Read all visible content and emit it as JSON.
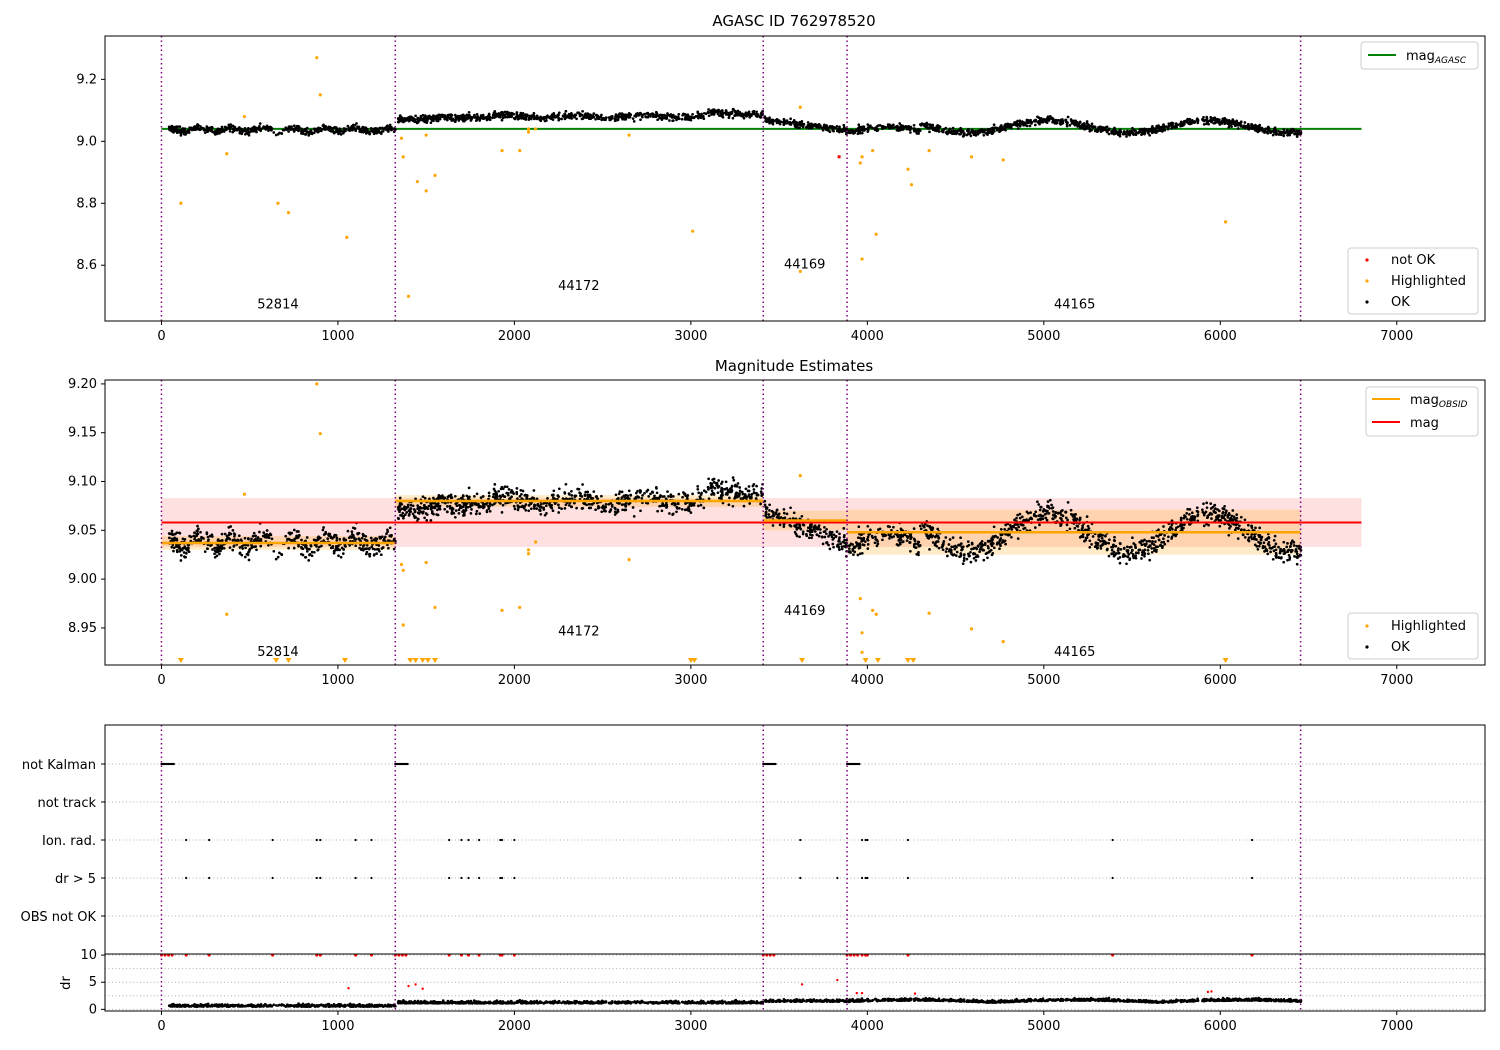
{
  "colors": {
    "ok": "#000000",
    "highlighted": "#ffa500",
    "not_ok": "#ff0000",
    "agasc_line": "#008000",
    "mag_line": "#ff0000",
    "obsid_line": "#ffa500",
    "obsid_boundary": "#800080"
  },
  "chart_data": [
    {
      "id": "agasc",
      "type": "scatter",
      "title": "AGASC ID 762978520",
      "xlim": [
        -320,
        7500
      ],
      "ylim": [
        8.42,
        9.34
      ],
      "xticks": [
        0,
        1000,
        2000,
        3000,
        4000,
        5000,
        6000,
        7000
      ],
      "yticks": [
        8.6,
        8.8,
        9.0,
        9.2
      ],
      "mag_agasc": 9.04,
      "legend_line": {
        "label": "mag",
        "subscript": "AGASC",
        "position": "upper right"
      },
      "legend_points": [
        "not OK",
        "Highlighted",
        "OK"
      ],
      "obsid_boundaries": [
        0,
        1325,
        3410,
        3885,
        6455
      ],
      "obsid_labels": [
        {
          "label": "52814",
          "x": 660,
          "y": 8.46
        },
        {
          "label": "44172",
          "x": 2365,
          "y": 8.52
        },
        {
          "label": "44169",
          "x": 3645,
          "y": 8.59
        },
        {
          "label": "44165",
          "x": 5175,
          "y": 8.46
        }
      ],
      "highlighted": [
        [
          110,
          8.8
        ],
        [
          370,
          8.96
        ],
        [
          470,
          9.08
        ],
        [
          660,
          8.8
        ],
        [
          720,
          8.77
        ],
        [
          880,
          9.27
        ],
        [
          900,
          9.15
        ],
        [
          1050,
          8.69
        ],
        [
          1360,
          9.01
        ],
        [
          1370,
          8.95
        ],
        [
          1400,
          8.5
        ],
        [
          1450,
          8.87
        ],
        [
          1500,
          9.02
        ],
        [
          1500,
          8.84
        ],
        [
          1550,
          8.89
        ],
        [
          1930,
          8.97
        ],
        [
          2030,
          8.97
        ],
        [
          2080,
          9.03
        ],
        [
          2080,
          9.04
        ],
        [
          2120,
          9.04
        ],
        [
          2650,
          9.02
        ],
        [
          3010,
          8.71
        ],
        [
          3620,
          9.11
        ],
        [
          3620,
          8.58
        ],
        [
          3960,
          8.93
        ],
        [
          3970,
          8.62
        ],
        [
          3970,
          8.95
        ],
        [
          4030,
          8.97
        ],
        [
          4050,
          8.7
        ],
        [
          4230,
          8.91
        ],
        [
          4250,
          8.86
        ],
        [
          4350,
          8.97
        ],
        [
          4590,
          8.95
        ],
        [
          4770,
          8.94
        ],
        [
          6030,
          8.74
        ]
      ],
      "not_ok": [
        [
          3840,
          8.95
        ]
      ]
    },
    {
      "id": "estimates",
      "type": "scatter",
      "title": "Magnitude Estimates",
      "xlim": [
        -320,
        7500
      ],
      "ylim": [
        8.912,
        9.204
      ],
      "xticks": [
        0,
        1000,
        2000,
        3000,
        4000,
        5000,
        6000,
        7000
      ],
      "yticks": [
        8.95,
        9.0,
        9.05,
        9.1,
        9.15,
        9.2
      ],
      "mag": 9.058,
      "mag_band": [
        9.033,
        9.083
      ],
      "obsid_means": [
        {
          "x0": 0,
          "x1": 1325,
          "mag": 9.037,
          "band": [
            9.03,
            9.044
          ]
        },
        {
          "x0": 1325,
          "x1": 3410,
          "mag": 9.08,
          "band": [
            9.074,
            9.086
          ]
        },
        {
          "x0": 3410,
          "x1": 3885,
          "mag": 9.06,
          "band": [
            9.05,
            9.07
          ]
        },
        {
          "x0": 3885,
          "x1": 6455,
          "mag": 9.048,
          "band": [
            9.025,
            9.071
          ]
        }
      ],
      "legend_lines": [
        {
          "label": "mag",
          "subscript": "OBSID"
        },
        {
          "label": "mag",
          "subscript": ""
        }
      ],
      "legend_points": [
        "Highlighted",
        "OK"
      ],
      "obsid_labels": [
        {
          "label": "52814",
          "x": 660,
          "y": 8.921
        },
        {
          "label": "44172",
          "x": 2365,
          "y": 8.942
        },
        {
          "label": "44169",
          "x": 3645,
          "y": 8.963
        },
        {
          "label": "44165",
          "x": 5175,
          "y": 8.921
        }
      ],
      "highlighted": [
        [
          370,
          8.964
        ],
        [
          470,
          9.087
        ],
        [
          880,
          9.2
        ],
        [
          900,
          9.149
        ],
        [
          1360,
          9.015
        ],
        [
          1370,
          9.009
        ],
        [
          1370,
          8.953
        ],
        [
          1500,
          9.017
        ],
        [
          1550,
          8.971
        ],
        [
          1930,
          8.968
        ],
        [
          2030,
          8.971
        ],
        [
          2080,
          9.03
        ],
        [
          2080,
          9.026
        ],
        [
          2120,
          9.038
        ],
        [
          2650,
          9.02
        ],
        [
          3620,
          9.106
        ],
        [
          3960,
          8.98
        ],
        [
          3970,
          8.945
        ],
        [
          3970,
          8.925
        ],
        [
          4030,
          8.968
        ],
        [
          4050,
          8.964
        ],
        [
          4350,
          8.965
        ],
        [
          4590,
          8.949
        ],
        [
          4770,
          8.936
        ]
      ],
      "below_axis_markers": [
        110,
        650,
        720,
        1040,
        1410,
        1440,
        1480,
        1510,
        1550,
        3000,
        3020,
        3630,
        3990,
        4060,
        4230,
        4260,
        6030
      ]
    },
    {
      "id": "flags",
      "type": "scatter",
      "categories": [
        "not Kalman",
        "not track",
        "Ion. rad.",
        "dr > 5",
        "OBS not OK"
      ],
      "xlim": [
        -320,
        7500
      ],
      "flag_ranges": {
        "not Kalman": [
          [
            0,
            70
          ],
          [
            1325,
            1395
          ],
          [
            3410,
            3480
          ],
          [
            3885,
            3955
          ]
        ]
      },
      "flag_points": {
        "Ion. rad.": [
          140,
          270,
          630,
          880,
          900,
          1100,
          1190,
          1630,
          1700,
          1740,
          1800,
          1920,
          1930,
          2000,
          3620,
          3970,
          3990,
          4000,
          4230,
          5390,
          6180
        ],
        "dr > 5": [
          140,
          270,
          630,
          880,
          900,
          1100,
          1190,
          1630,
          1700,
          1740,
          1800,
          1920,
          1930,
          2000,
          3620,
          3830,
          3970,
          3990,
          4000,
          4230,
          5390,
          6180
        ]
      }
    },
    {
      "id": "dr",
      "type": "scatter",
      "ylabel": "dr",
      "xlim": [
        -320,
        7500
      ],
      "ylim": [
        -0.3,
        10.2
      ],
      "xticks": [
        0,
        1000,
        2000,
        3000,
        4000,
        5000,
        6000,
        7000
      ],
      "yticks": [
        0,
        5,
        10
      ],
      "red_at_10": [
        0,
        20,
        40,
        60,
        140,
        270,
        630,
        880,
        900,
        1100,
        1190,
        1325,
        1345,
        1365,
        1385,
        1630,
        1700,
        1740,
        1800,
        1920,
        1930,
        2000,
        3410,
        3430,
        3450,
        3470,
        3885,
        3905,
        3925,
        3945,
        3970,
        3990,
        4000,
        4230,
        5390,
        6180
      ],
      "red_points": [
        [
          1060,
          3.9
        ],
        [
          1400,
          4.3
        ],
        [
          1440,
          4.6
        ],
        [
          1480,
          3.8
        ],
        [
          3630,
          4.6
        ],
        [
          3830,
          5.4
        ],
        [
          3940,
          3.0
        ],
        [
          3970,
          3.0
        ],
        [
          4270,
          2.9
        ],
        [
          5930,
          3.2
        ],
        [
          5950,
          3.3
        ]
      ]
    }
  ]
}
